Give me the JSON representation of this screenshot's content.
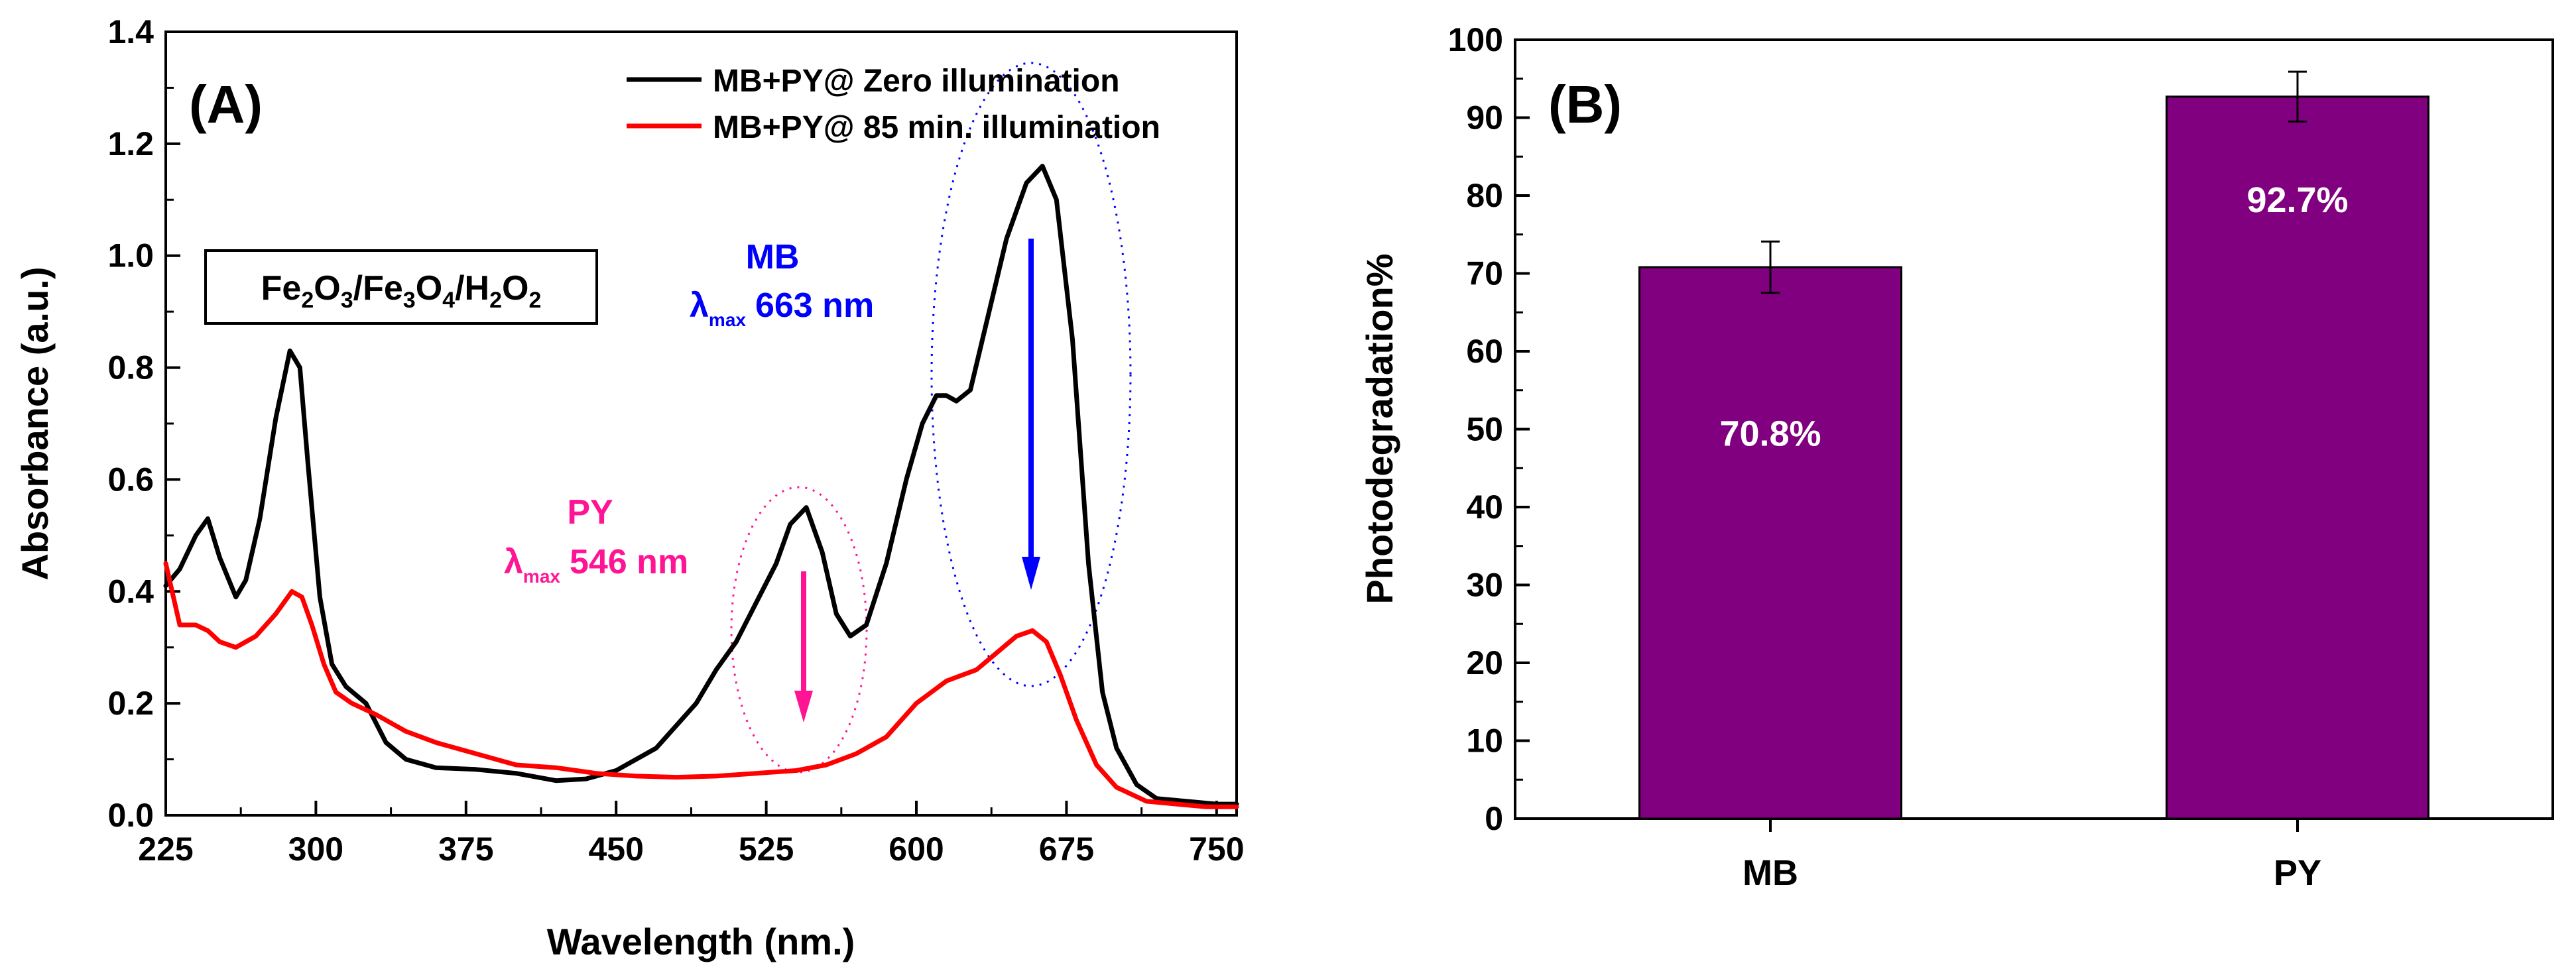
{
  "chart_data": [
    {
      "type": "line",
      "panel_label": "(A)",
      "xlabel": "Wavelength (nm.)",
      "ylabel": "Absorbance (a.u.)",
      "xlim": [
        225,
        760
      ],
      "ylim": [
        0.0,
        1.4
      ],
      "xticks": [
        225,
        300,
        375,
        450,
        525,
        600,
        675,
        750
      ],
      "yticks": [
        "0.0",
        "0.2",
        "0.4",
        "0.6",
        "0.8",
        "1.0",
        "1.2",
        "1.4"
      ],
      "legend_position": "top-right",
      "series": [
        {
          "name": "MB+PY@ Zero illumination",
          "color": "#000000",
          "x": [
            225,
            232,
            240,
            246,
            252,
            260,
            265,
            272,
            280,
            287,
            292,
            296,
            302,
            308,
            315,
            325,
            335,
            345,
            360,
            380,
            400,
            420,
            435,
            450,
            470,
            490,
            500,
            510,
            520,
            530,
            537,
            545,
            553,
            560,
            567,
            575,
            585,
            595,
            603,
            610,
            615,
            620,
            627,
            635,
            645,
            655,
            663,
            670,
            678,
            686,
            693,
            700,
            710,
            720,
            735,
            750,
            760
          ],
          "y": [
            0.41,
            0.44,
            0.5,
            0.53,
            0.46,
            0.39,
            0.42,
            0.53,
            0.71,
            0.83,
            0.8,
            0.63,
            0.39,
            0.27,
            0.23,
            0.2,
            0.13,
            0.1,
            0.085,
            0.082,
            0.075,
            0.062,
            0.065,
            0.08,
            0.12,
            0.2,
            0.26,
            0.31,
            0.38,
            0.45,
            0.52,
            0.55,
            0.47,
            0.36,
            0.32,
            0.34,
            0.45,
            0.6,
            0.7,
            0.75,
            0.75,
            0.74,
            0.76,
            0.88,
            1.03,
            1.13,
            1.16,
            1.1,
            0.85,
            0.45,
            0.22,
            0.12,
            0.055,
            0.03,
            0.025,
            0.02,
            0.02
          ]
        },
        {
          "name": "MB+PY@ 85 min. illumination",
          "color": "#ff0000",
          "x": [
            225,
            232,
            240,
            246,
            252,
            260,
            270,
            280,
            288,
            293,
            298,
            304,
            310,
            318,
            330,
            345,
            360,
            380,
            400,
            420,
            440,
            460,
            480,
            500,
            520,
            540,
            555,
            570,
            585,
            600,
            615,
            630,
            640,
            650,
            658,
            665,
            672,
            680,
            690,
            700,
            715,
            730,
            745,
            760
          ],
          "y": [
            0.45,
            0.34,
            0.34,
            0.33,
            0.31,
            0.3,
            0.32,
            0.36,
            0.4,
            0.39,
            0.34,
            0.27,
            0.22,
            0.2,
            0.18,
            0.15,
            0.13,
            0.11,
            0.09,
            0.085,
            0.075,
            0.07,
            0.068,
            0.07,
            0.075,
            0.08,
            0.09,
            0.11,
            0.14,
            0.2,
            0.24,
            0.26,
            0.29,
            0.32,
            0.33,
            0.31,
            0.25,
            0.17,
            0.09,
            0.05,
            0.025,
            0.02,
            0.015,
            0.015
          ]
        }
      ],
      "annotations": {
        "compound_box": "Fe2O3/Fe3O4/H2O2",
        "compound_parts": [
          "Fe",
          "2",
          "O",
          "3",
          "/Fe",
          "3",
          "O",
          "4",
          "/H",
          "2",
          "O",
          "2"
        ],
        "mb_label": "MB",
        "mb_lambda": "λ",
        "mb_lambda_sub": "max",
        "mb_value": "663 nm",
        "py_label": "PY",
        "py_lambda": "λ",
        "py_lambda_sub": "max",
        "py_value": "546 nm",
        "mb_color": "#0000ff",
        "py_color": "#ff1493"
      }
    },
    {
      "type": "bar",
      "panel_label": "(B)",
      "xlabel": "",
      "ylabel": "Photodegradation%",
      "ylim": [
        0,
        100
      ],
      "yticks": [
        0,
        10,
        20,
        30,
        40,
        50,
        60,
        70,
        80,
        90,
        100
      ],
      "categories": [
        "MB",
        "PY"
      ],
      "values": [
        70.8,
        92.7
      ],
      "errors": [
        3.3,
        3.2
      ],
      "value_labels": [
        "70.8%",
        "92.7%"
      ],
      "bar_color": "#800080"
    }
  ]
}
